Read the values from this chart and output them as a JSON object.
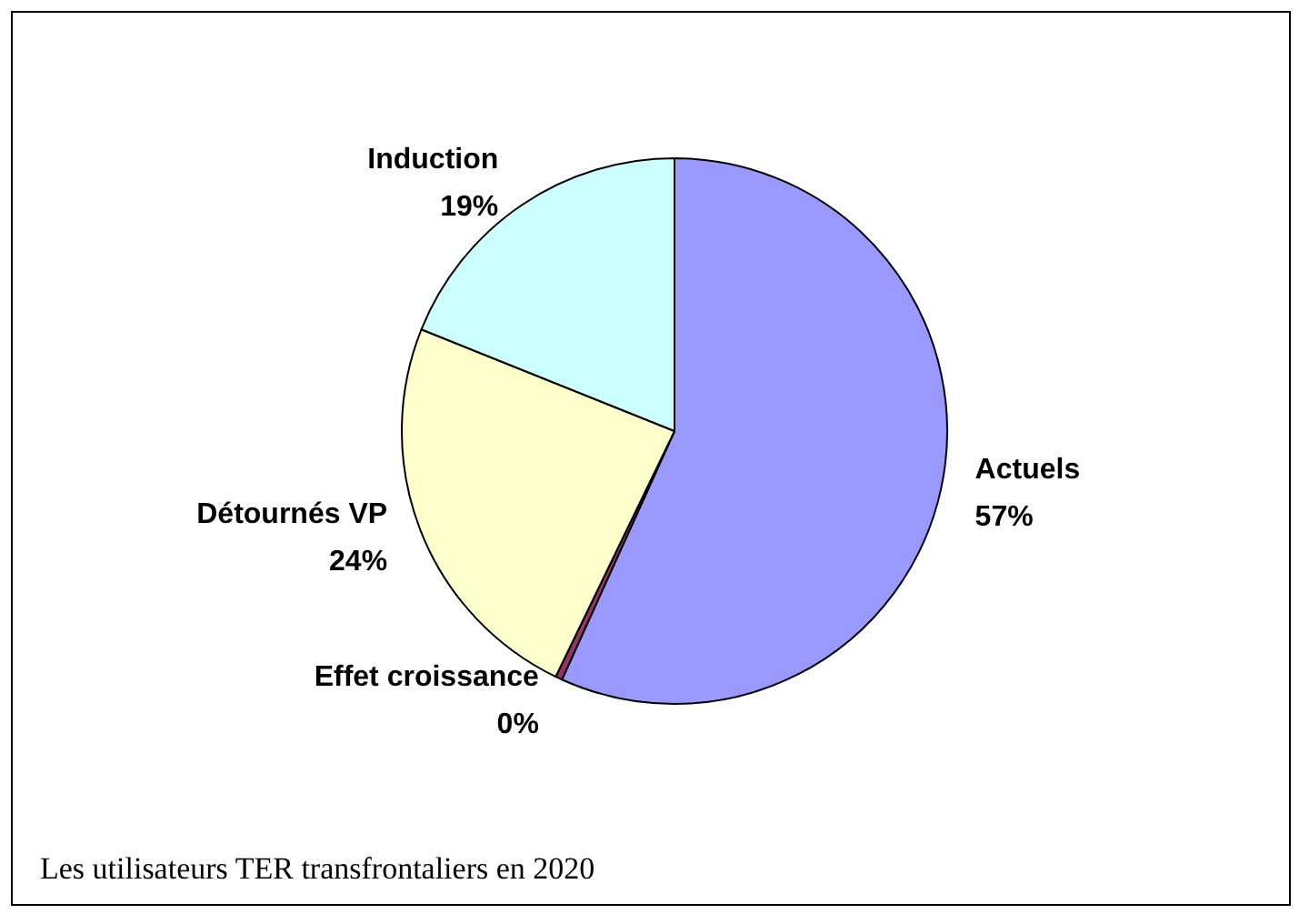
{
  "chart_data": {
    "type": "pie",
    "title": "Les utilisateurs TER transfrontaliers en 2020",
    "categories": [
      "Actuels",
      "Effet croissance",
      "Détournés VP",
      "Induction"
    ],
    "values": [
      57,
      0.4,
      24,
      19
    ],
    "value_labels": [
      "57%",
      "0%",
      "24%",
      "19%"
    ],
    "colors": [
      "#9999ff",
      "#993366",
      "#ffffcc",
      "#ccffff"
    ],
    "legend": false
  }
}
